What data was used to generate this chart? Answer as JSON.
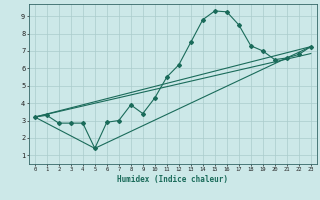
{
  "title": "",
  "xlabel": "Humidex (Indice chaleur)",
  "xlim": [
    -0.5,
    23.5
  ],
  "ylim": [
    0.5,
    9.7
  ],
  "xticks": [
    0,
    1,
    2,
    3,
    4,
    5,
    6,
    7,
    8,
    9,
    10,
    11,
    12,
    13,
    14,
    15,
    16,
    17,
    18,
    19,
    20,
    21,
    22,
    23
  ],
  "yticks": [
    1,
    2,
    3,
    4,
    5,
    6,
    7,
    8,
    9
  ],
  "bg_color": "#cce8e8",
  "grid_color": "#aacccc",
  "line_color": "#1a6b5a",
  "line1_x": [
    0,
    1,
    2,
    3,
    4,
    5,
    6,
    7,
    8,
    9,
    10,
    11,
    12,
    13,
    14,
    15,
    16,
    17,
    18,
    19,
    20,
    21,
    22,
    23
  ],
  "line1_y": [
    3.2,
    3.3,
    2.85,
    2.85,
    2.85,
    1.4,
    2.9,
    3.0,
    3.9,
    3.4,
    4.3,
    5.5,
    6.2,
    7.5,
    8.8,
    9.3,
    9.25,
    8.5,
    7.3,
    7.0,
    6.5,
    6.6,
    6.8,
    7.25
  ],
  "line2_x": [
    0,
    5,
    23
  ],
  "line2_y": [
    3.2,
    1.4,
    7.25
  ],
  "line3_x": [
    0,
    23
  ],
  "line3_y": [
    3.2,
    7.25
  ],
  "line4_x": [
    0,
    23
  ],
  "line4_y": [
    3.2,
    6.85
  ],
  "figsize": [
    3.2,
    2.0
  ],
  "dpi": 100
}
